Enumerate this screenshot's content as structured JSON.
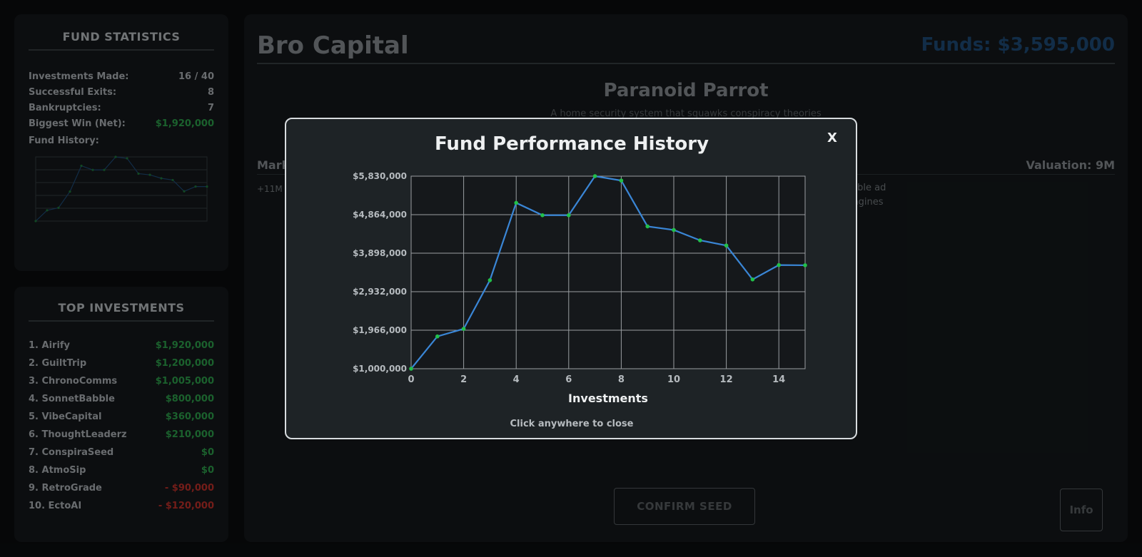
{
  "stats": {
    "title": "FUND STATISTICS",
    "rows": [
      {
        "label": "Investments Made:",
        "value": "16 / 40"
      },
      {
        "label": "Successful Exits:",
        "value": "8"
      },
      {
        "label": "Bankruptcies:",
        "value": "7"
      },
      {
        "label": "Biggest Win (Net):",
        "value": "$1,920,000"
      }
    ],
    "history_label": "Fund History:"
  },
  "top_investments": {
    "title": "TOP INVESTMENTS",
    "items": [
      {
        "name": "1. Airify",
        "value": "$1,920,000",
        "status": "positive"
      },
      {
        "name": "2. GuiltTrip",
        "value": "$1,200,000",
        "status": "positive"
      },
      {
        "name": "3. ChronoComms",
        "value": "$1,005,000",
        "status": "positive"
      },
      {
        "name": "4. SonnetBabble",
        "value": "$800,000",
        "status": "positive"
      },
      {
        "name": "5. VibeCapital",
        "value": "$360,000",
        "status": "positive"
      },
      {
        "name": "6. ThoughtLeaderz",
        "value": "$210,000",
        "status": "positive"
      },
      {
        "name": "7. ConspiraSeed",
        "value": "$0",
        "status": "positive"
      },
      {
        "name": "8. AtmoSip",
        "value": "$0",
        "status": "positive"
      },
      {
        "name": "9. RetroGrade",
        "value": "- $90,000",
        "status": "negative"
      },
      {
        "name": "10. EctoAI",
        "value": "- $120,000",
        "status": "negative"
      }
    ]
  },
  "main": {
    "title": "Bro Capital",
    "funds": "Funds: $3,595,000",
    "startup_name": "Paranoid Parrot",
    "startup_desc": "A home security system that squawks conspiracy theories",
    "market_label": "Mark",
    "valuation": "Valuation: 9M",
    "market_note": "+11M",
    "news_1": "terrible ad",
    "news_2": "n engines",
    "confirm_label": "CONFIRM SEED",
    "info_label": "Info"
  },
  "modal": {
    "title": "Fund Performance History",
    "close_label": "X",
    "hint": "Click anywhere to close"
  },
  "colors": {
    "line": "#3a86d6",
    "point": "#22c04a",
    "grid": "#9a9ea2",
    "positive": "#2fa84f",
    "negative": "#c8322c"
  },
  "chart_data": {
    "type": "line",
    "title": "Fund Performance History",
    "xlabel": "Investments",
    "ylabel": "",
    "x": [
      0,
      1,
      2,
      3,
      4,
      5,
      6,
      7,
      8,
      9,
      10,
      11,
      12,
      13,
      14,
      15
    ],
    "series": [
      {
        "values": [
          1000000,
          1810000,
          2000000,
          3220000,
          5160000,
          4850000,
          4850000,
          5830000,
          5720000,
          4570000,
          4480000,
          4220000,
          4090000,
          3240000,
          3600000,
          3595000
        ]
      }
    ],
    "xlim": [
      0,
      15
    ],
    "ylim": [
      1000000,
      5830000
    ],
    "x_ticks": [
      0,
      2,
      4,
      6,
      8,
      10,
      12,
      14
    ],
    "y_tick_labels": [
      "$1,000,000",
      "$1,966,000",
      "$2,932,000",
      "$3,898,000",
      "$4,864,000",
      "$5,830,000"
    ],
    "grid": true
  }
}
